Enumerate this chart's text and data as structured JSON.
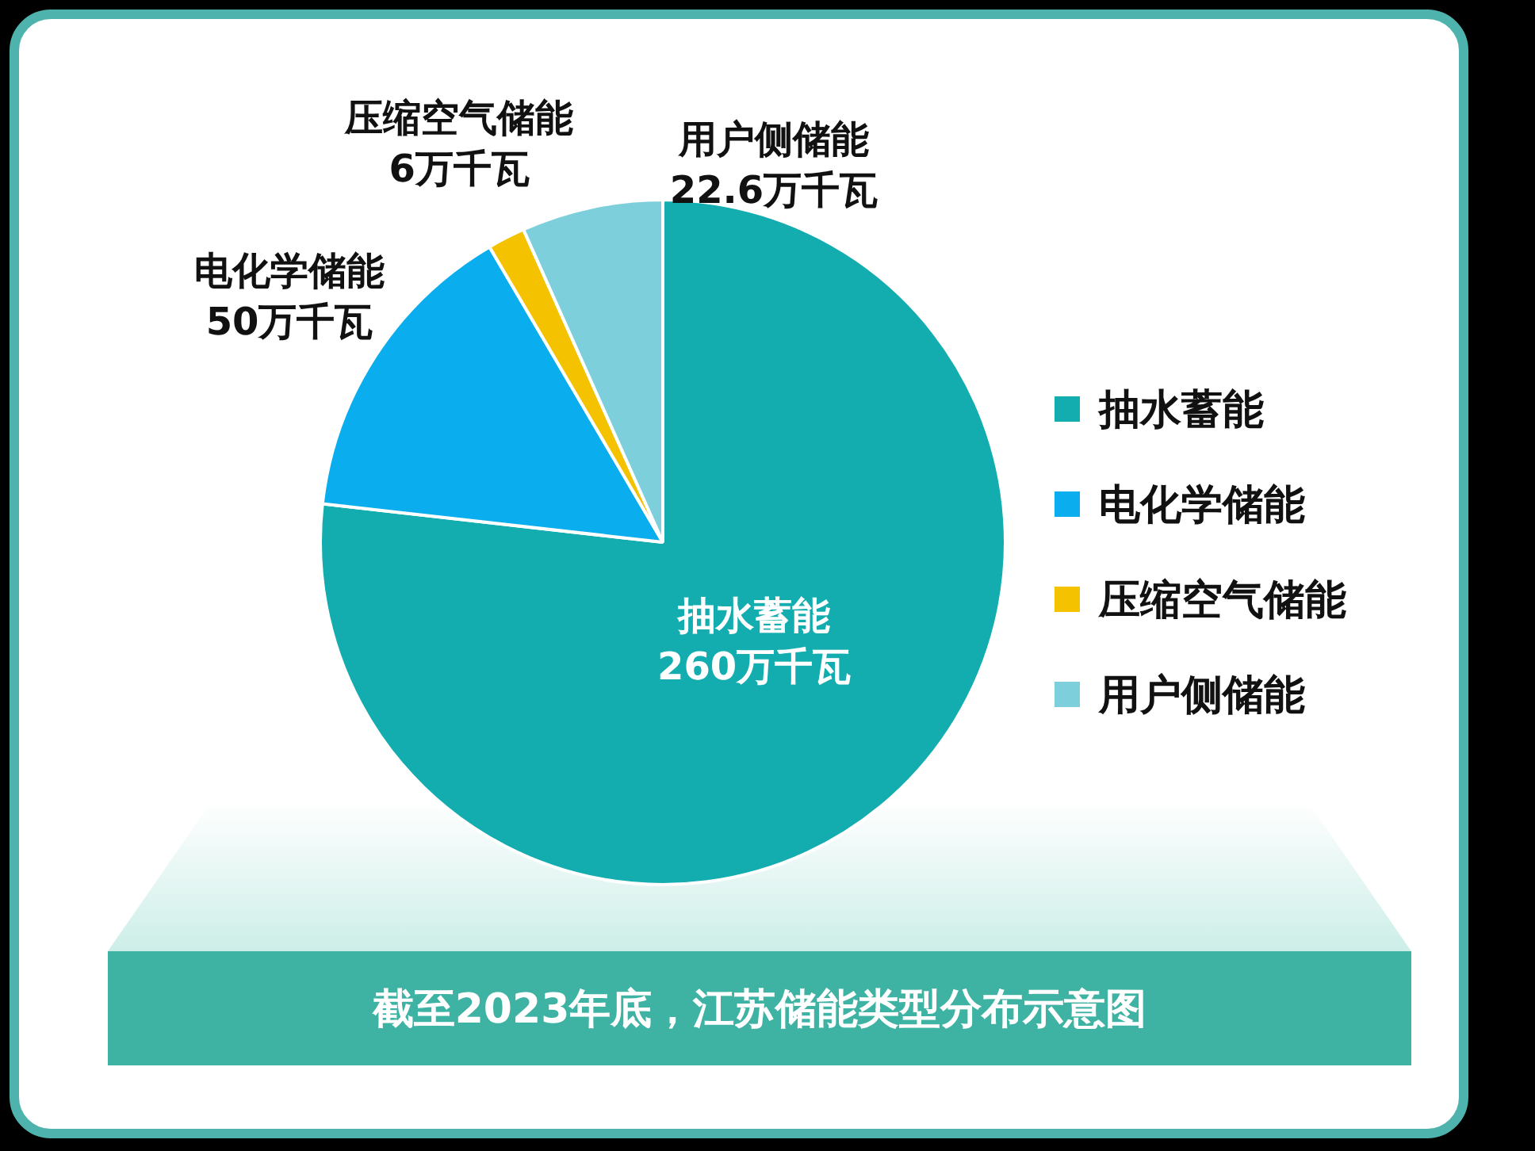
{
  "chart_data": {
    "type": "pie",
    "title": "截至2023年底，江苏储能类型分布示意图",
    "categories": [
      "抽水蓄能",
      "电化学储能",
      "压缩空气储能",
      "用户侧储能"
    ],
    "values": [
      260,
      50,
      6,
      22.6
    ],
    "colors": [
      "#13adb0",
      "#0aaeef",
      "#f5c200",
      "#7dcfdc"
    ],
    "value_labels": [
      "260万千瓦",
      "50万千瓦",
      "6万千瓦",
      "22.6万千瓦"
    ],
    "legend": "right"
  }
}
